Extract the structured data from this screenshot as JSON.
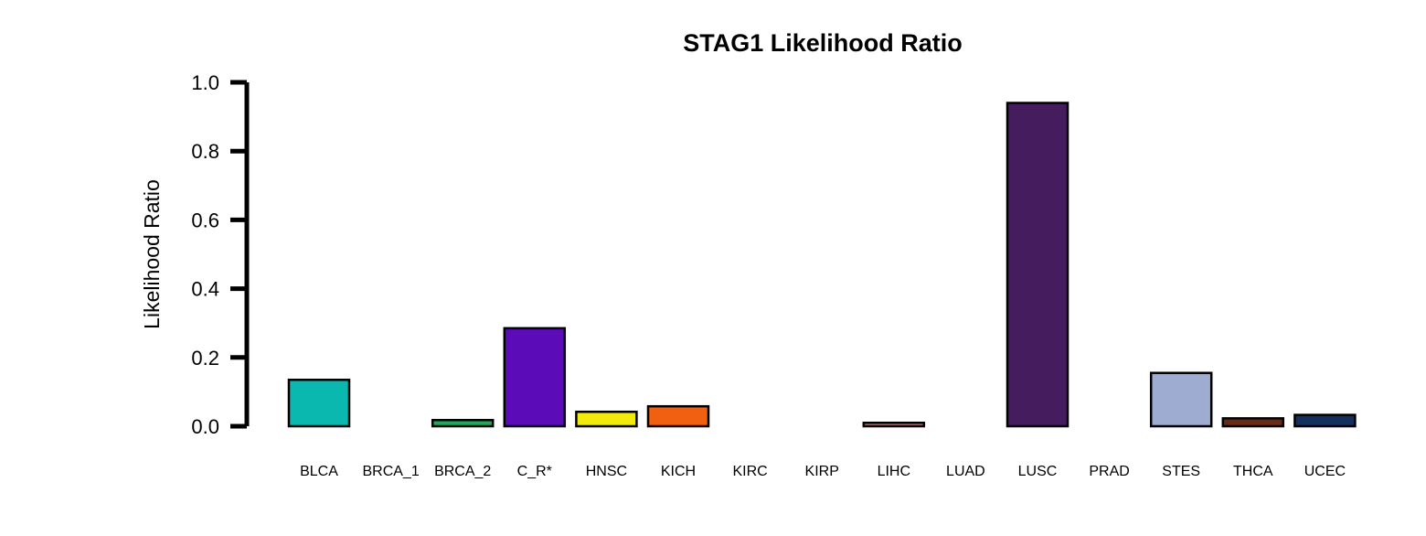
{
  "chart_data": {
    "type": "bar",
    "title": "STAG1 Likelihood Ratio",
    "xlabel": "",
    "ylabel": "Likelihood Ratio",
    "ylim": [
      0,
      1.0
    ],
    "yticks": [
      "0.0",
      "0.2",
      "0.4",
      "0.6",
      "0.8",
      "1.0"
    ],
    "grid": false,
    "categories": [
      "BLCA",
      "BRCA_1",
      "BRCA_2",
      "C_R*",
      "HNSC",
      "KICH",
      "KIRC",
      "KIRP",
      "LIHC",
      "LUAD",
      "LUSC",
      "PRAD",
      "STES",
      "THCA",
      "UCEC"
    ],
    "values": [
      0.135,
      0.0,
      0.018,
      0.285,
      0.042,
      0.058,
      0.0,
      0.0,
      0.01,
      0.0,
      0.94,
      0.0,
      0.155,
      0.023,
      0.033
    ],
    "colors": [
      "#0ab8b0",
      "#7a6a8a",
      "#1fa85a",
      "#5b0bb8",
      "#f2ea0a",
      "#f06010",
      "#3a3a3a",
      "#3a3a3a",
      "#c08080",
      "#3a3a3a",
      "#451c5e",
      "#3a3a3a",
      "#9eacd1",
      "#6b2a14",
      "#14305e"
    ]
  }
}
